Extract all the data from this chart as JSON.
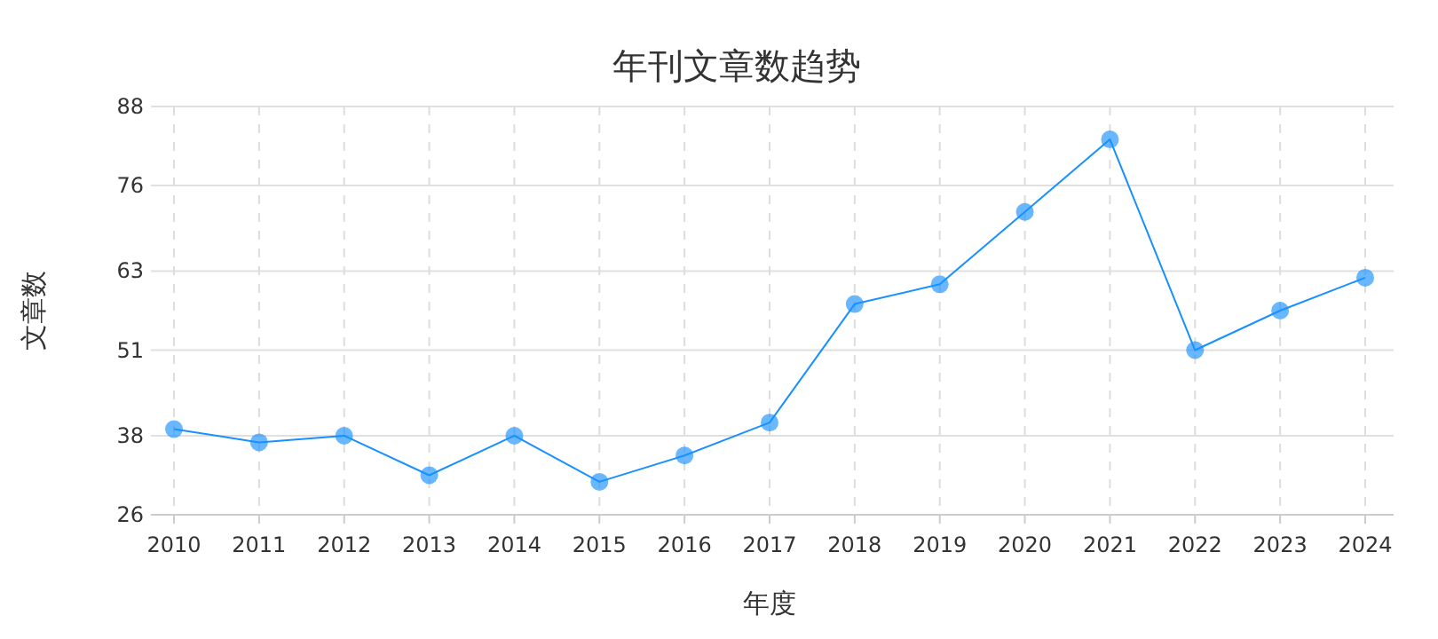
{
  "chart_data": {
    "type": "line",
    "title": "年刊文章数趋势",
    "xlabel": "年度",
    "ylabel": "文章数",
    "categories": [
      "2010",
      "2011",
      "2012",
      "2013",
      "2014",
      "2015",
      "2016",
      "2017",
      "2018",
      "2019",
      "2020",
      "2021",
      "2022",
      "2023",
      "2024"
    ],
    "series": [
      {
        "color": "#1890ff",
        "values": [
          39,
          37,
          38,
          32,
          38,
          31,
          35,
          40,
          58,
          61,
          72,
          83,
          51,
          57,
          62
        ]
      }
    ],
    "ylim": [
      26,
      88
    ],
    "yticks": [
      26,
      38,
      51,
      63,
      76,
      88
    ],
    "grid": true,
    "marker": "circle",
    "line_style": "solid"
  }
}
